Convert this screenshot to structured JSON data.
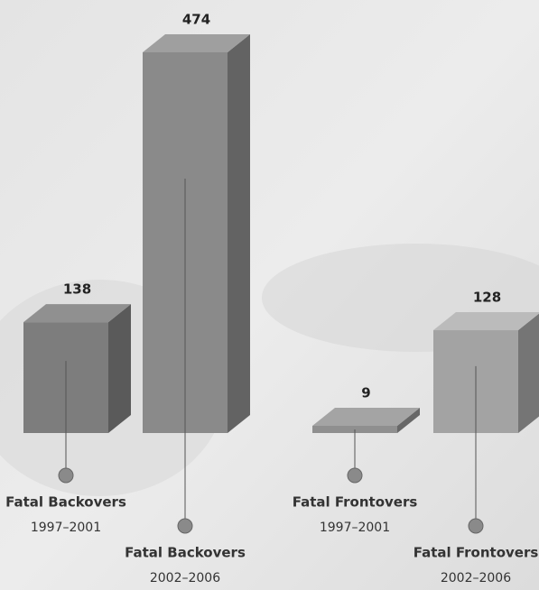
{
  "chart_data": {
    "type": "bar3d",
    "categories": [
      "Fatal Backovers",
      "Fatal Backovers",
      "Fatal Frontovers",
      "Fatal Frontovers"
    ],
    "periods": [
      "1997–2001",
      "2002–2006",
      "1997–2001",
      "2002–2006"
    ],
    "values": [
      138,
      474,
      9,
      128
    ],
    "colors": [
      "#7d7d7d",
      "#8a8a8a",
      "#8f8f8f",
      "#a3a3a3"
    ]
  }
}
